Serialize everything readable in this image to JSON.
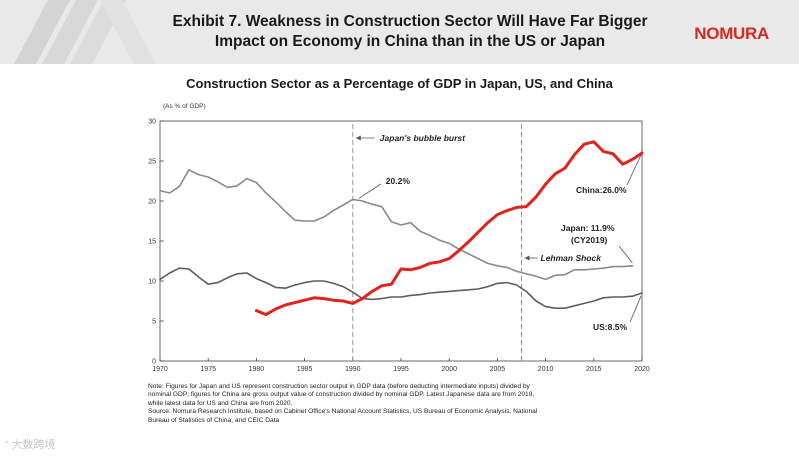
{
  "header": {
    "title_line1": "Exhibit 7. Weakness in Construction Sector Will Have Far Bigger",
    "title_line2": "Impact on Economy in China than in the US or Japan",
    "brand": "NOMURA"
  },
  "notes": {
    "line1": "Note: Figures for Japan and US represent construction sector output in GDP data (before deducting intermediate inputs) divided by",
    "line2": "nominal GDP; figures for China are gross output value of construction divided by nominal GDP. Latest Japanese data are from 2019,",
    "line3": "while latest data for US and China are from 2020.",
    "line4": "Source: Nomura Research Institute, based on Cabinet Office's National Account Statistics, US Bureau of Economic Analysis, National",
    "line5": "Bureau of Statistics of China, and CEIC Data"
  },
  "watermark": "‘’ 大数跨境",
  "chart_data": {
    "type": "line",
    "title": "Construction Sector as a Percentage of GDP in Japan, US, and China",
    "ylabel": "(As % of GDP)",
    "xlabel": "",
    "xlim": [
      1970,
      2020
    ],
    "ylim": [
      0,
      30
    ],
    "xticks": [
      1970,
      1975,
      1980,
      1985,
      1990,
      1995,
      2000,
      2005,
      2010,
      2015,
      2020
    ],
    "yticks": [
      0,
      5,
      10,
      15,
      20,
      25,
      30
    ],
    "colors": {
      "japan": "#8a8a8a",
      "us": "#5e5e5e",
      "china": "#e0231b",
      "annotation": "#555555",
      "axis": "#444444"
    },
    "series": [
      {
        "name": "Japan",
        "years": [
          1970,
          1971,
          1972,
          1973,
          1974,
          1975,
          1976,
          1977,
          1978,
          1979,
          1980,
          1981,
          1982,
          1983,
          1984,
          1985,
          1986,
          1987,
          1988,
          1989,
          1990,
          1991,
          1992,
          1993,
          1994,
          1995,
          1996,
          1997,
          1998,
          1999,
          2000,
          2001,
          2002,
          2003,
          2004,
          2005,
          2006,
          2007,
          2008,
          2009,
          2010,
          2011,
          2012,
          2013,
          2014,
          2015,
          2016,
          2017,
          2018,
          2019
        ],
        "values": [
          21.3,
          21.0,
          21.8,
          23.9,
          23.3,
          23.0,
          22.4,
          21.7,
          21.9,
          22.8,
          22.3,
          21.0,
          19.9,
          18.7,
          17.6,
          17.5,
          17.5,
          18.0,
          18.8,
          19.5,
          20.2,
          20.0,
          19.6,
          19.3,
          17.4,
          17.0,
          17.3,
          16.2,
          15.7,
          15.1,
          14.7,
          14.0,
          13.4,
          12.8,
          12.2,
          11.9,
          11.7,
          11.2,
          10.9,
          10.6,
          10.2,
          10.7,
          10.8,
          11.4,
          11.4,
          11.5,
          11.6,
          11.8,
          11.8,
          11.9
        ]
      },
      {
        "name": "US",
        "years": [
          1970,
          1971,
          1972,
          1973,
          1974,
          1975,
          1976,
          1977,
          1978,
          1979,
          1980,
          1981,
          1982,
          1983,
          1984,
          1985,
          1986,
          1987,
          1988,
          1989,
          1990,
          1991,
          1992,
          1993,
          1994,
          1995,
          1996,
          1997,
          1998,
          1999,
          2000,
          2001,
          2002,
          2003,
          2004,
          2005,
          2006,
          2007,
          2008,
          2009,
          2010,
          2011,
          2012,
          2013,
          2014,
          2015,
          2016,
          2017,
          2018,
          2019,
          2020
        ],
        "values": [
          10.2,
          11.0,
          11.6,
          11.5,
          10.5,
          9.6,
          9.8,
          10.4,
          10.9,
          11.0,
          10.3,
          9.8,
          9.2,
          9.1,
          9.5,
          9.8,
          10.0,
          10.0,
          9.7,
          9.3,
          8.6,
          7.8,
          7.7,
          7.8,
          8.0,
          8.0,
          8.2,
          8.3,
          8.5,
          8.6,
          8.7,
          8.8,
          8.9,
          9.0,
          9.3,
          9.7,
          9.8,
          9.5,
          8.7,
          7.5,
          6.8,
          6.6,
          6.6,
          6.9,
          7.2,
          7.5,
          7.9,
          8.0,
          8.0,
          8.1,
          8.5
        ]
      },
      {
        "name": "China",
        "years": [
          1980,
          1981,
          1982,
          1983,
          1984,
          1985,
          1986,
          1987,
          1988,
          1989,
          1990,
          1991,
          1992,
          1993,
          1994,
          1995,
          1996,
          1997,
          1998,
          1999,
          2000,
          2001,
          2002,
          2003,
          2004,
          2005,
          2006,
          2007,
          2008,
          2009,
          2010,
          2011,
          2012,
          2013,
          2014,
          2015,
          2016,
          2017,
          2018,
          2019,
          2020
        ],
        "values": [
          6.3,
          5.8,
          6.5,
          7.0,
          7.3,
          7.6,
          7.9,
          7.8,
          7.6,
          7.5,
          7.2,
          7.8,
          8.7,
          9.4,
          9.6,
          11.5,
          11.4,
          11.7,
          12.2,
          12.4,
          12.8,
          13.8,
          14.9,
          16.1,
          17.3,
          18.3,
          18.8,
          19.2,
          19.3,
          20.5,
          22.1,
          23.4,
          24.1,
          25.8,
          27.1,
          27.4,
          26.2,
          25.9,
          24.6,
          25.2,
          26.0
        ]
      }
    ],
    "annotations": [
      {
        "text": "Japan's bubble burst",
        "x": 1990,
        "italic": true
      },
      {
        "text": "20.2%",
        "x": 1990,
        "y": 20.2
      },
      {
        "text": "Lehman Shock",
        "x": 2007.5,
        "italic": true
      },
      {
        "text": "China:26.0%",
        "x": 2020,
        "y": 26.0
      },
      {
        "text": "Japan: 11.9%",
        "x": 2019,
        "y": 11.9
      },
      {
        "text": "(CY2019)",
        "x": 2019,
        "y": 11.9
      },
      {
        "text": "US:8.5%",
        "x": 2020,
        "y": 8.5
      }
    ],
    "vlines": [
      1990,
      2007.5
    ]
  }
}
